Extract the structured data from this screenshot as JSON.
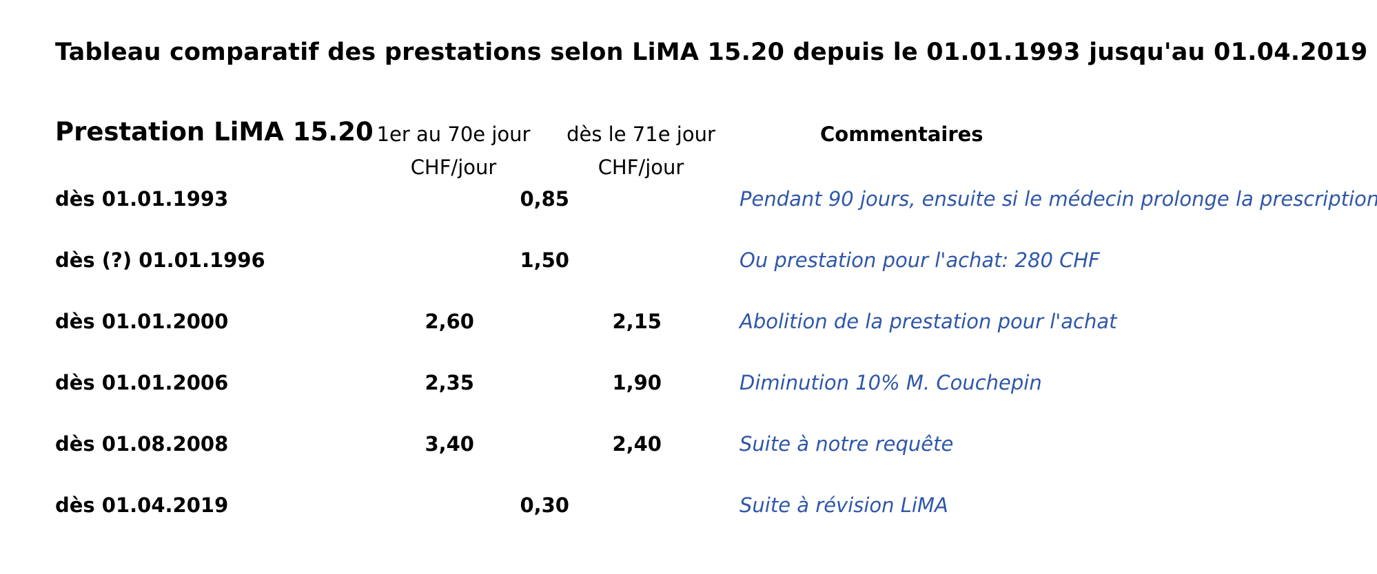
{
  "title": "Tableau comparatif des prestations selon LiMA 15.20 depuis le 01.01.1993 jusqu'au 01.04.2019",
  "header": {
    "label": "Prestation LiMA 15.20",
    "col1_line1": "1er au 70e jour",
    "col1_line2": "CHF/jour",
    "col2_line1": "dès le 71e jour",
    "col2_line2": "CHF/jour",
    "comments": "Commentaires"
  },
  "rows": [
    {
      "date": "dès 01.01.1993",
      "merged": "0,85",
      "col1": "",
      "col2": "",
      "comment": "Pendant 90 jours, ensuite si le médecin prolonge la prescription"
    },
    {
      "date": "dès (?) 01.01.1996",
      "merged": "1,50",
      "col1": "",
      "col2": "",
      "comment": "Ou prestation pour l'achat: 280 CHF"
    },
    {
      "date": "dès 01.01.2000",
      "merged": "",
      "col1": "2,60",
      "col2": "2,15",
      "comment": "Abolition de la prestation pour l'achat"
    },
    {
      "date": "dès 01.01.2006",
      "merged": "",
      "col1": "2,35",
      "col2": "1,90",
      "comment": "Diminution 10% M. Couchepin"
    },
    {
      "date": "dès 01.08.2008",
      "merged": "",
      "col1": "3,40",
      "col2": "2,40",
      "comment": "Suite à notre requête"
    },
    {
      "date": "dès 01.04.2019",
      "merged": "0,30",
      "col1": "",
      "col2": "",
      "comment": "Suite à révision LiMA"
    }
  ],
  "colors": {
    "comment_text": "#2f57a8",
    "body_text": "#000000",
    "background": "#ffffff"
  }
}
